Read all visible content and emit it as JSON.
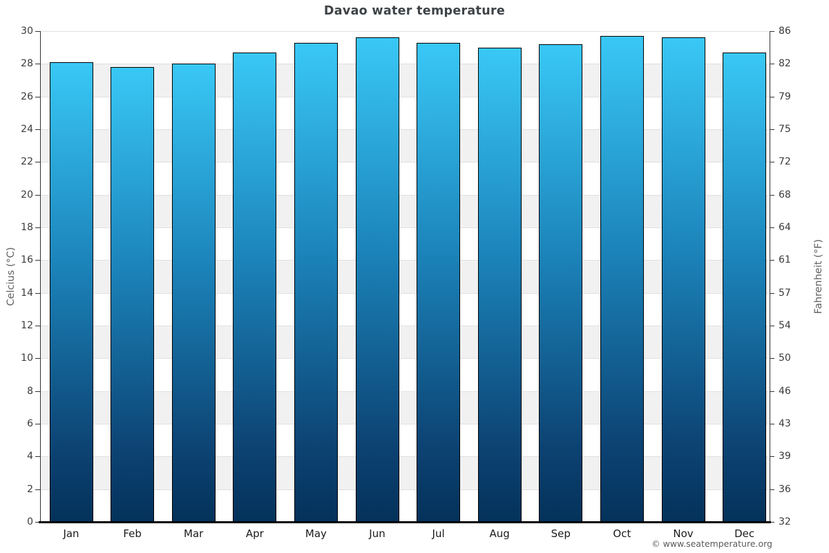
{
  "title": "Davao water temperature",
  "watermark": "© www.seatemperature.org",
  "colors": {
    "bar_gradient_top": "#39c8f6",
    "bar_gradient_mid": "#1b82b8",
    "bar_gradient_low": "#0c4272",
    "bar_gradient_bottom": "#04325a",
    "bar_border": "#000000",
    "band_gray": "#f1f1f1",
    "gridline": "#e0e0e0",
    "axis_line": "#333333",
    "bottom_axis_line": "#000000",
    "title_text": "#3e4347",
    "tick_text": "#3a3a3a",
    "month_text": "#1a1a1a",
    "axis_title_text": "#606060",
    "watermark_text": "#5a5a5a"
  },
  "axes": {
    "left_title": "Celcius (°C)",
    "right_title": "Fahrenheit (°F)"
  },
  "chart_data": {
    "type": "bar",
    "title": "Davao water temperature",
    "categories": [
      "Jan",
      "Feb",
      "Mar",
      "Apr",
      "May",
      "Jun",
      "Jul",
      "Aug",
      "Sep",
      "Oct",
      "Nov",
      "Dec"
    ],
    "values": [
      28.1,
      27.8,
      28.0,
      28.7,
      29.3,
      29.6,
      29.3,
      29.0,
      29.2,
      29.7,
      29.6,
      28.7
    ],
    "unit": "°C",
    "xlabel": "",
    "ylabel_left": "Celcius (°C)",
    "ylabel_right": "Fahrenheit (°F)",
    "ylim": [
      0,
      30
    ],
    "celsius_ticks": [
      0,
      2,
      4,
      6,
      8,
      10,
      12,
      14,
      16,
      18,
      20,
      22,
      24,
      26,
      28,
      30
    ],
    "fahrenheit_ticks": [
      32,
      36,
      39,
      43,
      46,
      50,
      54,
      57,
      61,
      64,
      68,
      72,
      75,
      79,
      82,
      86
    ],
    "gridline_step_celsius": 2,
    "gray_band_intervals_celsius": [
      [
        2,
        4
      ],
      [
        6,
        8
      ],
      [
        10,
        12
      ],
      [
        14,
        16
      ],
      [
        18,
        20
      ],
      [
        22,
        24
      ],
      [
        26,
        28
      ]
    ],
    "legend": "none",
    "grid": "horizontal"
  }
}
